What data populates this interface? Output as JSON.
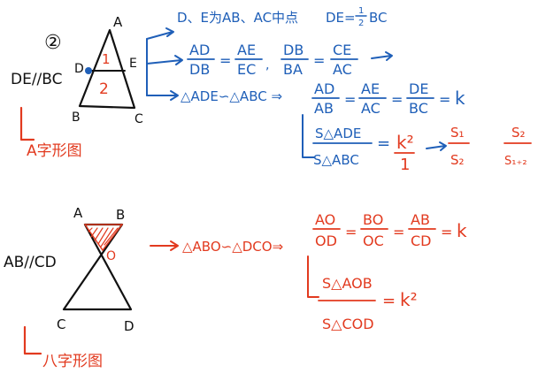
{
  "colors": {
    "ink": "#111111",
    "blue": "#1f5fb8",
    "red": "#e23a1f"
  },
  "sec1": {
    "num": "②",
    "cond": "DE//BC",
    "pt_a": "A",
    "pt_b": "B",
    "pt_c": "C",
    "pt_d": "D",
    "pt_e": "E",
    "reg1": "1",
    "reg2": "2",
    "name": "A字形图",
    "l1": "D、E为AB、AC中点",
    "l1b": "DE=",
    "f_half_n": "1",
    "f_half_d": "2",
    "l1c": "BC",
    "r1": {
      "n1": "AD",
      "d1": "DB",
      "n2": "AE",
      "d2": "EC",
      "n3": "DB",
      "d3": "BA",
      "n4": "CE",
      "d4": "AC"
    },
    "sim": "△ADE∽△ABC ⇒",
    "r2": {
      "n1": "AD",
      "d1": "AB",
      "n2": "AE",
      "d2": "AC",
      "n3": "DE",
      "d3": "BC",
      "k": "k"
    },
    "area": {
      "n": "S△ADE",
      "d": "S△ABC",
      "k": "k²",
      "n2": "k²",
      "d2": "1",
      "s1": "S₁",
      "s2": "S₂",
      "s1b": "S₂",
      "s2b": "S₁₊₂"
    }
  },
  "sec2": {
    "cond": "AB//CD",
    "pt_a": "A",
    "pt_b": "B",
    "pt_o": "O",
    "pt_c": "C",
    "pt_d": "D",
    "name": "八字形图",
    "sim": "△ABO∽△DCO⇒",
    "r": {
      "n1": "AO",
      "d1": "OD",
      "n2": "BO",
      "d2": "OC",
      "n3": "AB",
      "d3": "CD",
      "k": "k"
    },
    "area": {
      "n": "S△AOB",
      "d": "S△COD",
      "k": "k²"
    }
  }
}
